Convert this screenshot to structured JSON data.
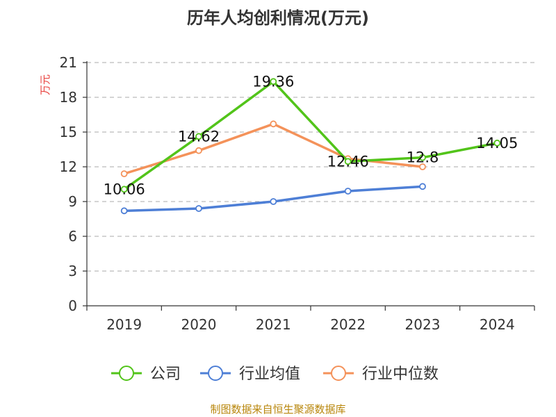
{
  "colors": {
    "company": "#52c41a",
    "avg": "#4e7fd6",
    "median": "#f4925a",
    "axis": "#333333",
    "grid": "#bbbbbb",
    "unit": "#e8413d"
  },
  "chart_data": {
    "type": "line",
    "title": "历年人均创利情况(万元)",
    "ylabel": "万元",
    "categories": [
      "2019",
      "2020",
      "2021",
      "2022",
      "2023",
      "2024"
    ],
    "ylim": [
      0,
      21
    ],
    "yticks": [
      "0",
      "3",
      "6",
      "9",
      "12",
      "15",
      "18",
      "21"
    ],
    "grid": true,
    "legend_position": "bottom",
    "series": [
      {
        "name": "公司",
        "color": "#52c41a",
        "values": [
          10.06,
          14.62,
          19.36,
          12.46,
          12.8,
          14.05
        ],
        "labels": [
          "10.06",
          "14.62",
          "19.36",
          "12.46",
          "12.8",
          "14.05"
        ]
      },
      {
        "name": "行业均值",
        "color": "#4e7fd6",
        "values": [
          8.2,
          8.4,
          9.0,
          9.9,
          10.3,
          null
        ]
      },
      {
        "name": "行业中位数",
        "color": "#f4925a",
        "values": [
          11.4,
          13.4,
          15.7,
          12.7,
          12.0,
          null
        ]
      }
    ]
  },
  "source": "制图数据来自恒生聚源数据库"
}
